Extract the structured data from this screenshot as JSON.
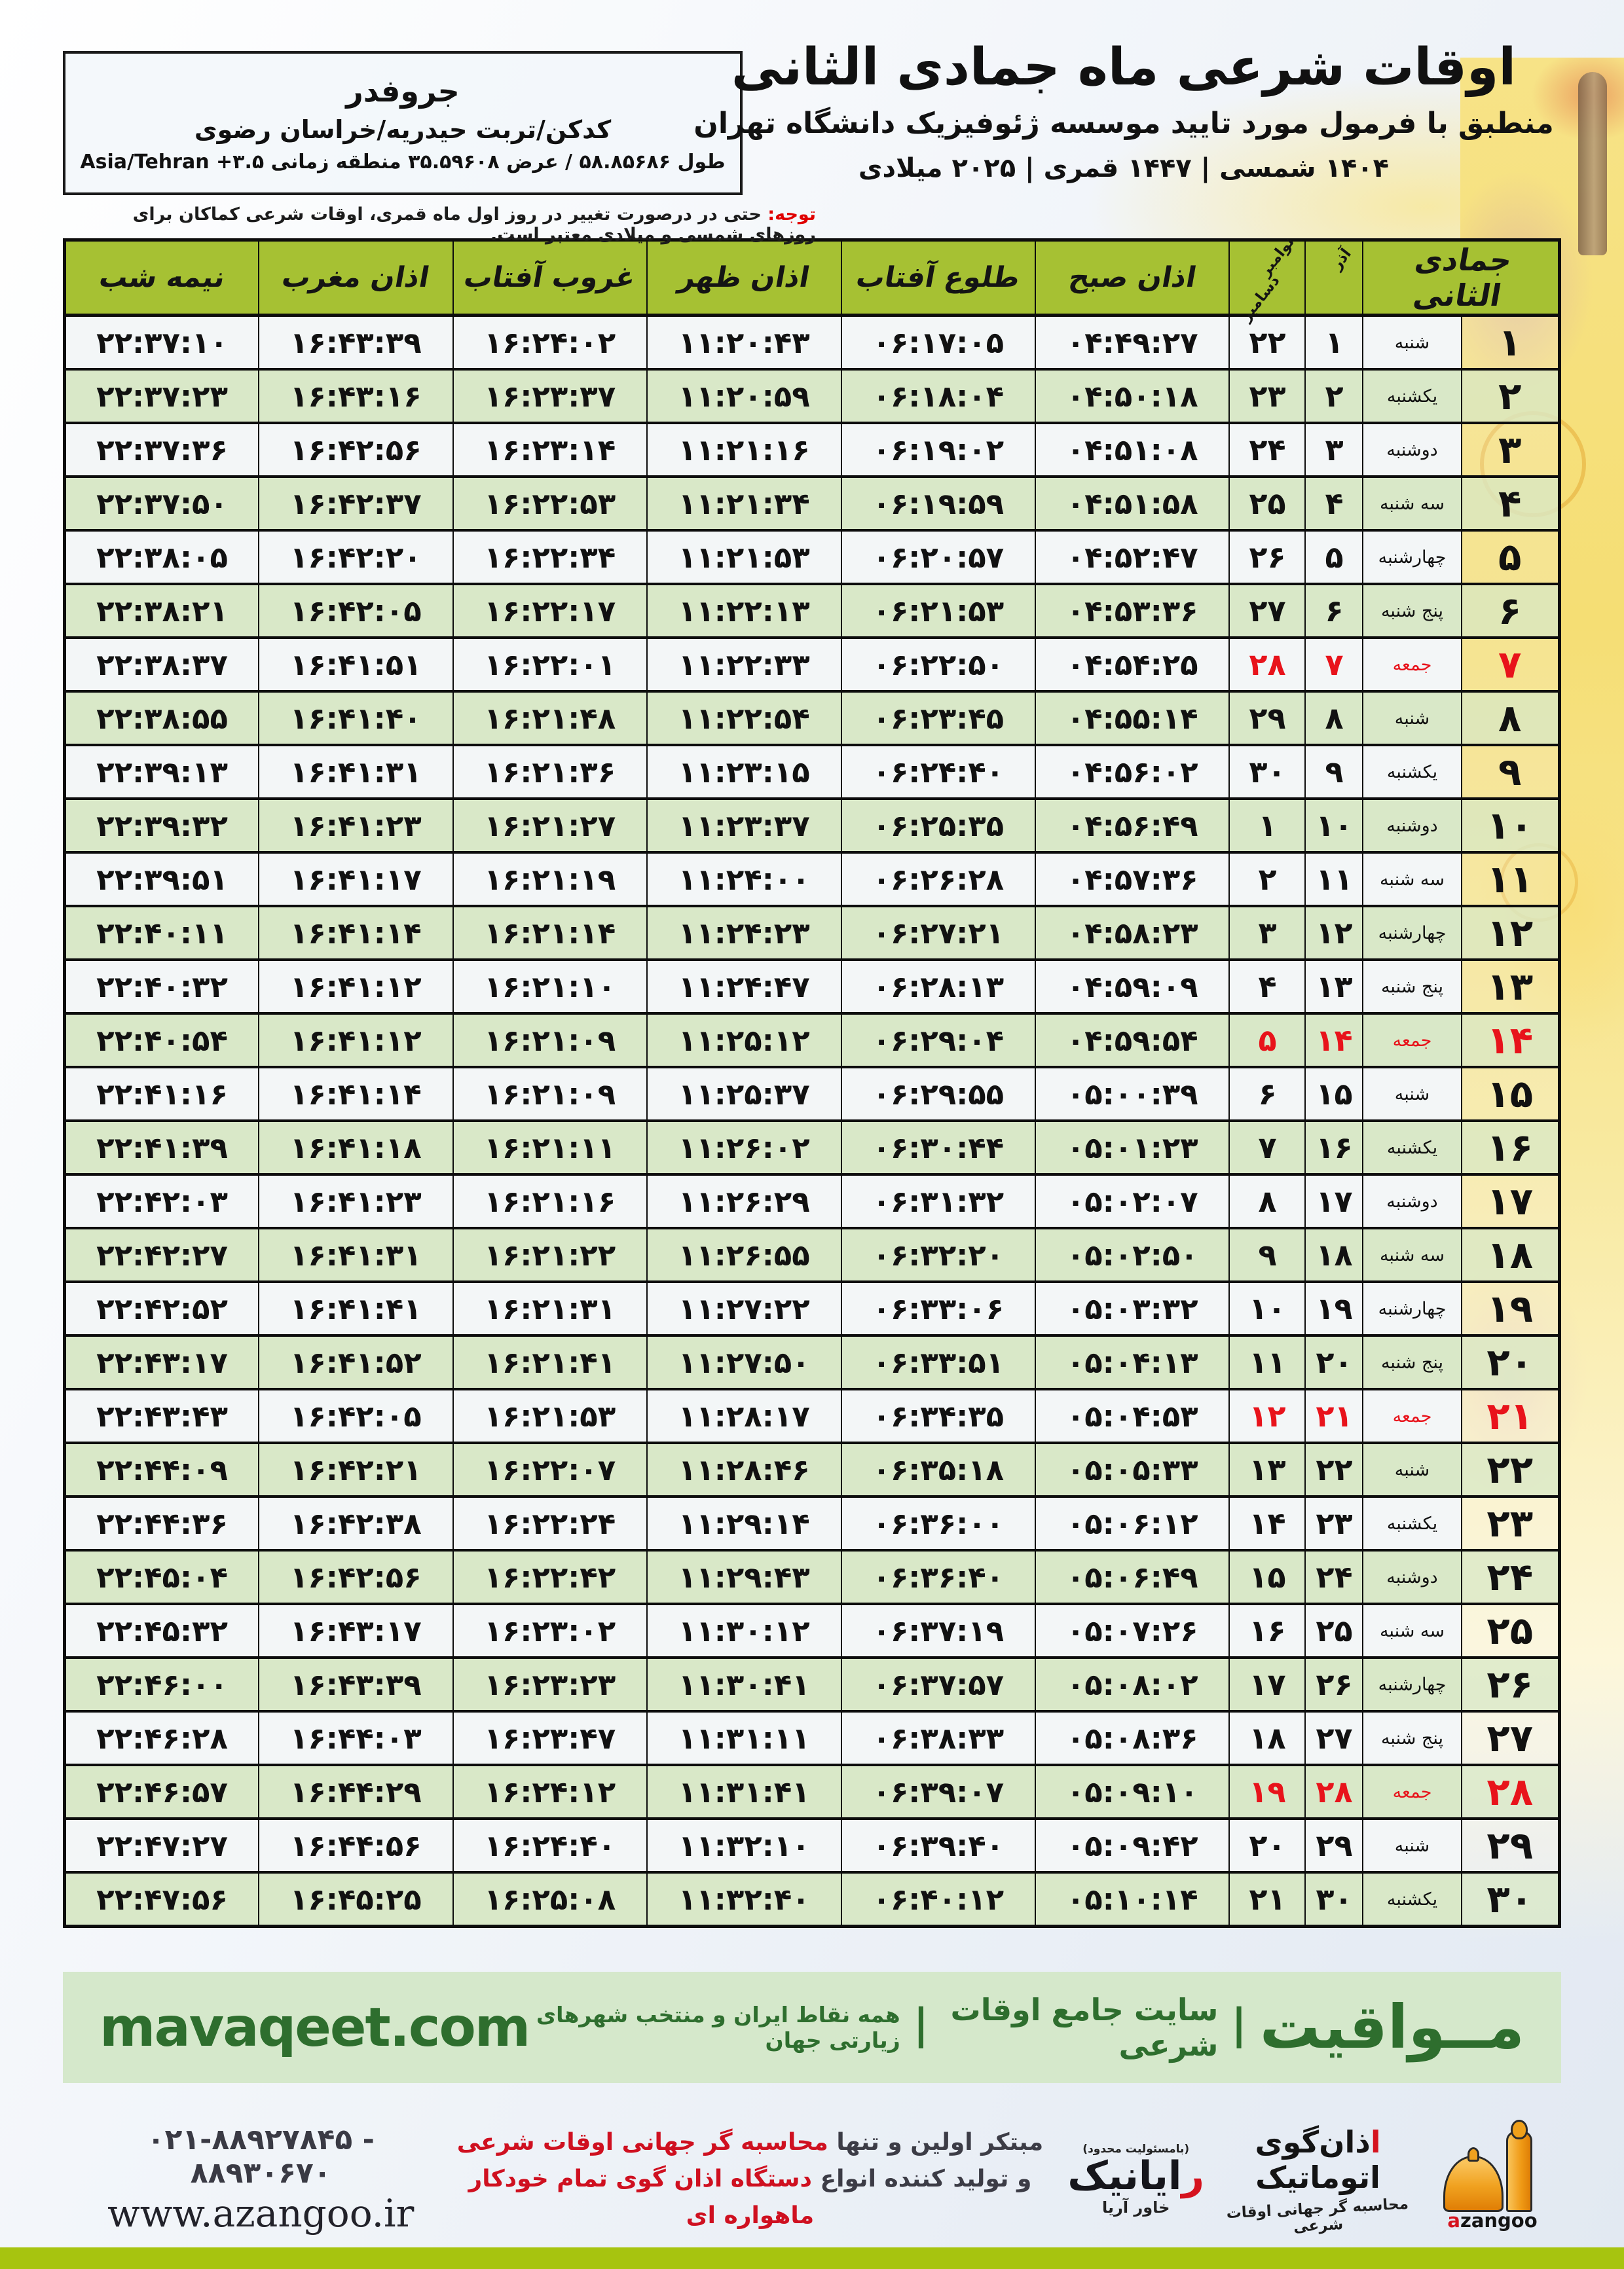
{
  "location": {
    "city": "جروفدر",
    "region": "کدکن/تربت حیدریه/خراسان رضوی",
    "coords_fa": "طول ۵۸.۸۵۶۸۶ / عرض ۳۵.۵۹۶۰۸ منطقه زمانی",
    "coords_latin": "Asia/Tehran +۳.۵"
  },
  "header": {
    "title": "اوقات شرعی ماه جمادی الثانی",
    "subtitle": "منطبق با فرمول مورد تایید موسسه ژئوفیزیک دانشگاه تهران",
    "years": "۱۴۰۴ شمسی | ۱۴۴۷ قمری | ۲۰۲۵ میلادی"
  },
  "notice": {
    "label": "توجه:",
    "text": " حتی در درصورت تغییر در روز اول ماه قمری، اوقات شرعی کماکان برای روزهای شمسی و میلادی معتبر است."
  },
  "table": {
    "headers": {
      "month": "جمادی الثانی",
      "azar": "آذر",
      "nov": "نوامبر",
      "dec": "دسامبر",
      "sobh": "اذان صبح",
      "tolu": "طلوع آفتاب",
      "zohr": "اذان ظهر",
      "ghorub": "غروب آفتاب",
      "maghreb": "اذان مغرب",
      "nimeshab": "نیمه شب"
    },
    "rows": [
      {
        "d": "۱",
        "w": "شنبه",
        "a": "۱",
        "g": "۲۲",
        "f": false,
        "t": [
          "۰۴:۴۹:۲۷",
          "۰۶:۱۷:۰۵",
          "۱۱:۲۰:۴۳",
          "۱۶:۲۴:۰۲",
          "۱۶:۴۳:۳۹",
          "۲۲:۳۷:۱۰"
        ]
      },
      {
        "d": "۲",
        "w": "یکشنبه",
        "a": "۲",
        "g": "۲۳",
        "f": false,
        "t": [
          "۰۴:۵۰:۱۸",
          "۰۶:۱۸:۰۴",
          "۱۱:۲۰:۵۹",
          "۱۶:۲۳:۳۷",
          "۱۶:۴۳:۱۶",
          "۲۲:۳۷:۲۳"
        ]
      },
      {
        "d": "۳",
        "w": "دوشنبه",
        "a": "۳",
        "g": "۲۴",
        "f": false,
        "t": [
          "۰۴:۵۱:۰۸",
          "۰۶:۱۹:۰۲",
          "۱۱:۲۱:۱۶",
          "۱۶:۲۳:۱۴",
          "۱۶:۴۲:۵۶",
          "۲۲:۳۷:۳۶"
        ]
      },
      {
        "d": "۴",
        "w": "سه شنبه",
        "a": "۴",
        "g": "۲۵",
        "f": false,
        "t": [
          "۰۴:۵۱:۵۸",
          "۰۶:۱۹:۵۹",
          "۱۱:۲۱:۳۴",
          "۱۶:۲۲:۵۳",
          "۱۶:۴۲:۳۷",
          "۲۲:۳۷:۵۰"
        ]
      },
      {
        "d": "۵",
        "w": "چهارشنبه",
        "a": "۵",
        "g": "۲۶",
        "f": false,
        "t": [
          "۰۴:۵۲:۴۷",
          "۰۶:۲۰:۵۷",
          "۱۱:۲۱:۵۳",
          "۱۶:۲۲:۳۴",
          "۱۶:۴۲:۲۰",
          "۲۲:۳۸:۰۵"
        ]
      },
      {
        "d": "۶",
        "w": "پنج شنبه",
        "a": "۶",
        "g": "۲۷",
        "f": false,
        "t": [
          "۰۴:۵۳:۳۶",
          "۰۶:۲۱:۵۳",
          "۱۱:۲۲:۱۳",
          "۱۶:۲۲:۱۷",
          "۱۶:۴۲:۰۵",
          "۲۲:۳۸:۲۱"
        ]
      },
      {
        "d": "۷",
        "w": "جمعه",
        "a": "۷",
        "g": "۲۸",
        "f": true,
        "t": [
          "۰۴:۵۴:۲۵",
          "۰۶:۲۲:۵۰",
          "۱۱:۲۲:۳۳",
          "۱۶:۲۲:۰۱",
          "۱۶:۴۱:۵۱",
          "۲۲:۳۸:۳۷"
        ]
      },
      {
        "d": "۸",
        "w": "شنبه",
        "a": "۸",
        "g": "۲۹",
        "f": false,
        "t": [
          "۰۴:۵۵:۱۴",
          "۰۶:۲۳:۴۵",
          "۱۱:۲۲:۵۴",
          "۱۶:۲۱:۴۸",
          "۱۶:۴۱:۴۰",
          "۲۲:۳۸:۵۵"
        ]
      },
      {
        "d": "۹",
        "w": "یکشنبه",
        "a": "۹",
        "g": "۳۰",
        "f": false,
        "t": [
          "۰۴:۵۶:۰۲",
          "۰۶:۲۴:۴۰",
          "۱۱:۲۳:۱۵",
          "۱۶:۲۱:۳۶",
          "۱۶:۴۱:۳۱",
          "۲۲:۳۹:۱۳"
        ]
      },
      {
        "d": "۱۰",
        "w": "دوشنبه",
        "a": "۱۰",
        "g": "۱",
        "f": false,
        "t": [
          "۰۴:۵۶:۴۹",
          "۰۶:۲۵:۳۵",
          "۱۱:۲۳:۳۷",
          "۱۶:۲۱:۲۷",
          "۱۶:۴۱:۲۳",
          "۲۲:۳۹:۳۲"
        ]
      },
      {
        "d": "۱۱",
        "w": "سه شنبه",
        "a": "۱۱",
        "g": "۲",
        "f": false,
        "t": [
          "۰۴:۵۷:۳۶",
          "۰۶:۲۶:۲۸",
          "۱۱:۲۴:۰۰",
          "۱۶:۲۱:۱۹",
          "۱۶:۴۱:۱۷",
          "۲۲:۳۹:۵۱"
        ]
      },
      {
        "d": "۱۲",
        "w": "چهارشنبه",
        "a": "۱۲",
        "g": "۳",
        "f": false,
        "t": [
          "۰۴:۵۸:۲۳",
          "۰۶:۲۷:۲۱",
          "۱۱:۲۴:۲۳",
          "۱۶:۲۱:۱۴",
          "۱۶:۴۱:۱۴",
          "۲۲:۴۰:۱۱"
        ]
      },
      {
        "d": "۱۳",
        "w": "پنج شنبه",
        "a": "۱۳",
        "g": "۴",
        "f": false,
        "t": [
          "۰۴:۵۹:۰۹",
          "۰۶:۲۸:۱۳",
          "۱۱:۲۴:۴۷",
          "۱۶:۲۱:۱۰",
          "۱۶:۴۱:۱۲",
          "۲۲:۴۰:۳۲"
        ]
      },
      {
        "d": "۱۴",
        "w": "جمعه",
        "a": "۱۴",
        "g": "۵",
        "f": true,
        "t": [
          "۰۴:۵۹:۵۴",
          "۰۶:۲۹:۰۴",
          "۱۱:۲۵:۱۲",
          "۱۶:۲۱:۰۹",
          "۱۶:۴۱:۱۲",
          "۲۲:۴۰:۵۴"
        ]
      },
      {
        "d": "۱۵",
        "w": "شنبه",
        "a": "۱۵",
        "g": "۶",
        "f": false,
        "t": [
          "۰۵:۰۰:۳۹",
          "۰۶:۲۹:۵۵",
          "۱۱:۲۵:۳۷",
          "۱۶:۲۱:۰۹",
          "۱۶:۴۱:۱۴",
          "۲۲:۴۱:۱۶"
        ]
      },
      {
        "d": "۱۶",
        "w": "یکشنبه",
        "a": "۱۶",
        "g": "۷",
        "f": false,
        "t": [
          "۰۵:۰۱:۲۳",
          "۰۶:۳۰:۴۴",
          "۱۱:۲۶:۰۲",
          "۱۶:۲۱:۱۱",
          "۱۶:۴۱:۱۸",
          "۲۲:۴۱:۳۹"
        ]
      },
      {
        "d": "۱۷",
        "w": "دوشنبه",
        "a": "۱۷",
        "g": "۸",
        "f": false,
        "t": [
          "۰۵:۰۲:۰۷",
          "۰۶:۳۱:۳۲",
          "۱۱:۲۶:۲۹",
          "۱۶:۲۱:۱۶",
          "۱۶:۴۱:۲۳",
          "۲۲:۴۲:۰۳"
        ]
      },
      {
        "d": "۱۸",
        "w": "سه شنبه",
        "a": "۱۸",
        "g": "۹",
        "f": false,
        "t": [
          "۰۵:۰۲:۵۰",
          "۰۶:۳۲:۲۰",
          "۱۱:۲۶:۵۵",
          "۱۶:۲۱:۲۲",
          "۱۶:۴۱:۳۱",
          "۲۲:۴۲:۲۷"
        ]
      },
      {
        "d": "۱۹",
        "w": "چهارشنبه",
        "a": "۱۹",
        "g": "۱۰",
        "f": false,
        "t": [
          "۰۵:۰۳:۳۲",
          "۰۶:۳۳:۰۶",
          "۱۱:۲۷:۲۲",
          "۱۶:۲۱:۳۱",
          "۱۶:۴۱:۴۱",
          "۲۲:۴۲:۵۲"
        ]
      },
      {
        "d": "۲۰",
        "w": "پنج شنبه",
        "a": "۲۰",
        "g": "۱۱",
        "f": false,
        "t": [
          "۰۵:۰۴:۱۳",
          "۰۶:۳۳:۵۱",
          "۱۱:۲۷:۵۰",
          "۱۶:۲۱:۴۱",
          "۱۶:۴۱:۵۲",
          "۲۲:۴۳:۱۷"
        ]
      },
      {
        "d": "۲۱",
        "w": "جمعه",
        "a": "۲۱",
        "g": "۱۲",
        "f": true,
        "t": [
          "۰۵:۰۴:۵۳",
          "۰۶:۳۴:۳۵",
          "۱۱:۲۸:۱۷",
          "۱۶:۲۱:۵۳",
          "۱۶:۴۲:۰۵",
          "۲۲:۴۳:۴۳"
        ]
      },
      {
        "d": "۲۲",
        "w": "شنبه",
        "a": "۲۲",
        "g": "۱۳",
        "f": false,
        "t": [
          "۰۵:۰۵:۳۳",
          "۰۶:۳۵:۱۸",
          "۱۱:۲۸:۴۶",
          "۱۶:۲۲:۰۷",
          "۱۶:۴۲:۲۱",
          "۲۲:۴۴:۰۹"
        ]
      },
      {
        "d": "۲۳",
        "w": "یکشنبه",
        "a": "۲۳",
        "g": "۱۴",
        "f": false,
        "t": [
          "۰۵:۰۶:۱۲",
          "۰۶:۳۶:۰۰",
          "۱۱:۲۹:۱۴",
          "۱۶:۲۲:۲۴",
          "۱۶:۴۲:۳۸",
          "۲۲:۴۴:۳۶"
        ]
      },
      {
        "d": "۲۴",
        "w": "دوشنبه",
        "a": "۲۴",
        "g": "۱۵",
        "f": false,
        "t": [
          "۰۵:۰۶:۴۹",
          "۰۶:۳۶:۴۰",
          "۱۱:۲۹:۴۳",
          "۱۶:۲۲:۴۲",
          "۱۶:۴۲:۵۶",
          "۲۲:۴۵:۰۴"
        ]
      },
      {
        "d": "۲۵",
        "w": "سه شنبه",
        "a": "۲۵",
        "g": "۱۶",
        "f": false,
        "t": [
          "۰۵:۰۷:۲۶",
          "۰۶:۳۷:۱۹",
          "۱۱:۳۰:۱۲",
          "۱۶:۲۳:۰۲",
          "۱۶:۴۳:۱۷",
          "۲۲:۴۵:۳۲"
        ]
      },
      {
        "d": "۲۶",
        "w": "چهارشنبه",
        "a": "۲۶",
        "g": "۱۷",
        "f": false,
        "t": [
          "۰۵:۰۸:۰۲",
          "۰۶:۳۷:۵۷",
          "۱۱:۳۰:۴۱",
          "۱۶:۲۳:۲۳",
          "۱۶:۴۳:۳۹",
          "۲۲:۴۶:۰۰"
        ]
      },
      {
        "d": "۲۷",
        "w": "پنج شنبه",
        "a": "۲۷",
        "g": "۱۸",
        "f": false,
        "t": [
          "۰۵:۰۸:۳۶",
          "۰۶:۳۸:۳۳",
          "۱۱:۳۱:۱۱",
          "۱۶:۲۳:۴۷",
          "۱۶:۴۴:۰۳",
          "۲۲:۴۶:۲۸"
        ]
      },
      {
        "d": "۲۸",
        "w": "جمعه",
        "a": "۲۸",
        "g": "۱۹",
        "f": true,
        "t": [
          "۰۵:۰۹:۱۰",
          "۰۶:۳۹:۰۷",
          "۱۱:۳۱:۴۱",
          "۱۶:۲۴:۱۲",
          "۱۶:۴۴:۲۹",
          "۲۲:۴۶:۵۷"
        ]
      },
      {
        "d": "۲۹",
        "w": "شنبه",
        "a": "۲۹",
        "g": "۲۰",
        "f": false,
        "t": [
          "۰۵:۰۹:۴۲",
          "۰۶:۳۹:۴۰",
          "۱۱:۳۲:۱۰",
          "۱۶:۲۴:۴۰",
          "۱۶:۴۴:۵۶",
          "۲۲:۴۷:۲۷"
        ]
      },
      {
        "d": "۳۰",
        "w": "یکشنبه",
        "a": "۳۰",
        "g": "۲۱",
        "f": false,
        "t": [
          "۰۵:۱۰:۱۴",
          "۰۶:۴۰:۱۲",
          "۱۱:۳۲:۴۰",
          "۱۶:۲۵:۰۸",
          "۱۶:۴۵:۲۵",
          "۲۲:۴۷:۵۶"
        ]
      }
    ]
  },
  "footer": {
    "domain": "mavaqeet.com",
    "brand": "مــواقیت",
    "site_desc": "سایت جامع اوقات شرعی",
    "coverage": "همه نقاط ایران و منتخب شهرهای زیارتی جهان",
    "phone": "۰۲۱-۸۸۹۲۷۸۴۵ - ۸۸۹۳۰۶۷۰",
    "website": "www.azangoo.ir",
    "promo1_dark": "مبتکر اولین و تنها ",
    "promo1_red": "محاسبه گر جهانی اوقات شرعی",
    "promo2_dark": "و تولید کننده انواع ",
    "promo2_red": "دستگاه اذان گوی تمام خودکار ماهواره ای",
    "rayanik_llc": "(بامسئولیت محدود)",
    "rayanik_r": "ر",
    "rayanik_name": "ایانیک",
    "rayanik_sub": "خاور آریا",
    "azangoo_a": "ا",
    "azangoo_title": "ذان‌گوی اتوماتیک",
    "azangoo_tagline": "محاسبه گر جهانی اوقات شرعی",
    "azangoo_latin_a": "a",
    "azangoo_latin_rest": "zangoo"
  },
  "colors": {
    "header_green": "#a6c133",
    "row_green": "#d9e8c8",
    "row_white": "#f3f6f7",
    "friday_red": "#e8131b",
    "notice_red": "#e00000",
    "footer_bg": "#d5e8cb",
    "footer_text": "#2e6e2e",
    "lime": "#a7c40f",
    "azangoo_orange": "#f0a11f"
  }
}
